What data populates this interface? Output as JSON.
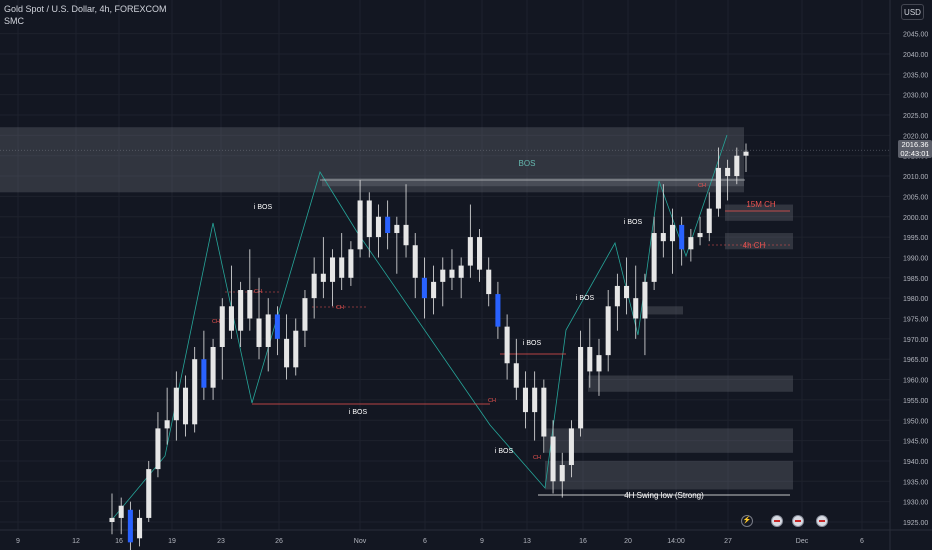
{
  "header": {
    "symbol_line": "Gold Spot / U.S. Dollar, 4h, FOREXCOM",
    "indicator": "SMC",
    "currency": "USD"
  },
  "price_tag": {
    "price": "2016.36",
    "countdown": "02:43:01"
  },
  "colors": {
    "background": "#131722",
    "grid": "#1e222d",
    "candle_up": "#e6e6e6",
    "candle_down": "#e6e6e6",
    "candle_accent": "#2962ff",
    "zone": "#787b86",
    "structure_line": "#26a69a",
    "bos_red": "#ef5350",
    "bos_label": "#ffffff",
    "choch": "#ef5350"
  },
  "chart_data": {
    "type": "candlestick",
    "y_axis": {
      "min": 1925,
      "max": 2045,
      "ticks": [
        "1925.00",
        "1930.00",
        "1935.00",
        "1940.00",
        "1945.00",
        "1950.00",
        "1955.00",
        "1960.00",
        "1965.00",
        "1970.00",
        "1975.00",
        "1980.00",
        "1985.00",
        "1990.00",
        "1995.00",
        "2000.00",
        "2005.00",
        "2010.00",
        "2015.00",
        "2020.00",
        "2025.00",
        "2030.00",
        "2035.00",
        "2040.00",
        "2045.00"
      ],
      "scale": "linear"
    },
    "x_axis": {
      "ticks": [
        "9",
        "12",
        "16",
        "19",
        "23",
        "26",
        "Nov",
        "6",
        "9",
        "13",
        "16",
        "20",
        "14:00",
        "27",
        "Dec",
        "6"
      ]
    },
    "last_price": 2016.36,
    "candles": [
      {
        "x": "16",
        "o": 1925,
        "h": 1932,
        "l": 1922,
        "c": 1926
      },
      {
        "x": "16",
        "o": 1926,
        "h": 1931,
        "l": 1922,
        "c": 1929
      },
      {
        "x": "16",
        "o": 1928,
        "h": 1930,
        "l": 1918,
        "c": 1920
      },
      {
        "x": "19",
        "o": 1921,
        "h": 1928,
        "l": 1919,
        "c": 1926
      },
      {
        "x": "19",
        "o": 1926,
        "h": 1940,
        "l": 1925,
        "c": 1938
      },
      {
        "x": "19",
        "o": 1938,
        "h": 1952,
        "l": 1936,
        "c": 1948
      },
      {
        "x": "19",
        "o": 1948,
        "h": 1958,
        "l": 1944,
        "c": 1950
      },
      {
        "x": "19",
        "o": 1950,
        "h": 1962,
        "l": 1945,
        "c": 1958
      },
      {
        "x": "19",
        "o": 1958,
        "h": 1961,
        "l": 1946,
        "c": 1949
      },
      {
        "x": "19",
        "o": 1949,
        "h": 1968,
        "l": 1947,
        "c": 1965
      },
      {
        "x": "19",
        "o": 1965,
        "h": 1972,
        "l": 1955,
        "c": 1958
      },
      {
        "x": "19",
        "o": 1958,
        "h": 1970,
        "l": 1955,
        "c": 1968
      },
      {
        "x": "23",
        "o": 1968,
        "h": 1980,
        "l": 1960,
        "c": 1978
      },
      {
        "x": "23",
        "o": 1978,
        "h": 1988,
        "l": 1970,
        "c": 1972
      },
      {
        "x": "23",
        "o": 1972,
        "h": 1984,
        "l": 1968,
        "c": 1982
      },
      {
        "x": "23",
        "o": 1982,
        "h": 1992,
        "l": 1972,
        "c": 1975
      },
      {
        "x": "23",
        "o": 1975,
        "h": 1985,
        "l": 1965,
        "c": 1968
      },
      {
        "x": "23",
        "o": 1968,
        "h": 1980,
        "l": 1962,
        "c": 1976
      },
      {
        "x": "23",
        "o": 1976,
        "h": 1978,
        "l": 1966,
        "c": 1970
      },
      {
        "x": "23",
        "o": 1970,
        "h": 1976,
        "l": 1960,
        "c": 1963
      },
      {
        "x": "26",
        "o": 1963,
        "h": 1975,
        "l": 1961,
        "c": 1972
      },
      {
        "x": "26",
        "o": 1972,
        "h": 1982,
        "l": 1968,
        "c": 1980
      },
      {
        "x": "26",
        "o": 1980,
        "h": 1990,
        "l": 1975,
        "c": 1986
      },
      {
        "x": "26",
        "o": 1986,
        "h": 1995,
        "l": 1980,
        "c": 1984
      },
      {
        "x": "26",
        "o": 1984,
        "h": 1992,
        "l": 1978,
        "c": 1990
      },
      {
        "x": "26",
        "o": 1990,
        "h": 1996,
        "l": 1982,
        "c": 1985
      },
      {
        "x": "26",
        "o": 1985,
        "h": 1994,
        "l": 1983,
        "c": 1992
      },
      {
        "x": "26",
        "o": 1992,
        "h": 2009,
        "l": 1990,
        "c": 2004
      },
      {
        "x": "Nov",
        "o": 2004,
        "h": 2006,
        "l": 1990,
        "c": 1995
      },
      {
        "x": "Nov",
        "o": 1995,
        "h": 2003,
        "l": 1990,
        "c": 2000
      },
      {
        "x": "Nov",
        "o": 2000,
        "h": 2004,
        "l": 1992,
        "c": 1996
      },
      {
        "x": "Nov",
        "o": 1996,
        "h": 2000,
        "l": 1986,
        "c": 1998
      },
      {
        "x": "Nov",
        "o": 1998,
        "h": 2008,
        "l": 1990,
        "c": 1993
      },
      {
        "x": "Nov",
        "o": 1993,
        "h": 1996,
        "l": 1980,
        "c": 1985
      },
      {
        "x": "Nov",
        "o": 1985,
        "h": 1990,
        "l": 1975,
        "c": 1980
      },
      {
        "x": "Nov",
        "o": 1980,
        "h": 1988,
        "l": 1976,
        "c": 1984
      },
      {
        "x": "6",
        "o": 1984,
        "h": 1990,
        "l": 1978,
        "c": 1987
      },
      {
        "x": "6",
        "o": 1987,
        "h": 1992,
        "l": 1982,
        "c": 1985
      },
      {
        "x": "6",
        "o": 1985,
        "h": 1990,
        "l": 1980,
        "c": 1988
      },
      {
        "x": "6",
        "o": 1988,
        "h": 2003,
        "l": 1985,
        "c": 1995
      },
      {
        "x": "6",
        "o": 1995,
        "h": 1997,
        "l": 1984,
        "c": 1987
      },
      {
        "x": "6",
        "o": 1987,
        "h": 1990,
        "l": 1978,
        "c": 1981
      },
      {
        "x": "9",
        "o": 1981,
        "h": 1984,
        "l": 1970,
        "c": 1973
      },
      {
        "x": "9",
        "o": 1973,
        "h": 1976,
        "l": 1960,
        "c": 1964
      },
      {
        "x": "9",
        "o": 1964,
        "h": 1970,
        "l": 1955,
        "c": 1958
      },
      {
        "x": "9",
        "o": 1958,
        "h": 1962,
        "l": 1948,
        "c": 1952
      },
      {
        "x": "13",
        "o": 1952,
        "h": 1962,
        "l": 1945,
        "c": 1958
      },
      {
        "x": "13",
        "o": 1958,
        "h": 1960,
        "l": 1942,
        "c": 1946
      },
      {
        "x": "13",
        "o": 1946,
        "h": 1950,
        "l": 1932,
        "c": 1935
      },
      {
        "x": "13",
        "o": 1935,
        "h": 1942,
        "l": 1931,
        "c": 1939
      },
      {
        "x": "13",
        "o": 1939,
        "h": 1950,
        "l": 1936,
        "c": 1948
      },
      {
        "x": "16",
        "o": 1948,
        "h": 1972,
        "l": 1946,
        "c": 1968
      },
      {
        "x": "16",
        "o": 1968,
        "h": 1975,
        "l": 1958,
        "c": 1962
      },
      {
        "x": "16",
        "o": 1962,
        "h": 1970,
        "l": 1956,
        "c": 1966
      },
      {
        "x": "16",
        "o": 1966,
        "h": 1982,
        "l": 1962,
        "c": 1978
      },
      {
        "x": "16",
        "o": 1978,
        "h": 1986,
        "l": 1972,
        "c": 1983
      },
      {
        "x": "16",
        "o": 1983,
        "h": 1990,
        "l": 1976,
        "c": 1980
      },
      {
        "x": "20",
        "o": 1980,
        "h": 1988,
        "l": 1970,
        "c": 1975
      },
      {
        "x": "20",
        "o": 1975,
        "h": 1986,
        "l": 1966,
        "c": 1984
      },
      {
        "x": "20",
        "o": 1984,
        "h": 2000,
        "l": 1982,
        "c": 1996
      },
      {
        "x": "20",
        "o": 1996,
        "h": 2008,
        "l": 1990,
        "c": 1994
      },
      {
        "x": "20",
        "o": 1994,
        "h": 2002,
        "l": 1986,
        "c": 1998
      },
      {
        "x": "14:00",
        "o": 1998,
        "h": 2000,
        "l": 1988,
        "c": 1992
      },
      {
        "x": "14:00",
        "o": 1992,
        "h": 1997,
        "l": 1989,
        "c": 1995
      },
      {
        "x": "14:00",
        "o": 1995,
        "h": 2000,
        "l": 1993,
        "c": 1996
      },
      {
        "x": "14:00",
        "o": 1996,
        "h": 2006,
        "l": 1994,
        "c": 2002
      },
      {
        "x": "27",
        "o": 2002,
        "h": 2017,
        "l": 2000,
        "c": 2012
      },
      {
        "x": "27",
        "o": 2012,
        "h": 2014,
        "l": 2004,
        "c": 2010
      },
      {
        "x": "27",
        "o": 2010,
        "h": 2017,
        "l": 2008,
        "c": 2015
      },
      {
        "x": "27",
        "o": 2015,
        "h": 2018,
        "l": 2011,
        "c": 2016
      }
    ],
    "zones": [
      {
        "label": "BOS",
        "y_top": 2022,
        "y_bottom": 2006,
        "x_start": "left",
        "x_end": "27"
      },
      {
        "label": "",
        "y_top": 2003,
        "y_bottom": 1999,
        "x_start": "27",
        "x_end": "Dec"
      },
      {
        "label": "",
        "y_top": 1996,
        "y_bottom": 1992,
        "x_start": "27",
        "x_end": "Dec"
      },
      {
        "label": "",
        "y_top": 1978,
        "y_bottom": 1976,
        "x_start": "20",
        "x_end": "14:00"
      },
      {
        "label": "",
        "y_top": 1961,
        "y_bottom": 1957,
        "x_start": "16",
        "x_end": "Dec"
      },
      {
        "label": "",
        "y_top": 1948,
        "y_bottom": 1942,
        "x_start": "13",
        "x_end": "Dec"
      },
      {
        "label": "",
        "y_top": 1940,
        "y_bottom": 1933,
        "x_start": "13",
        "x_end": "Dec"
      }
    ],
    "annotations": [
      {
        "text": "BOS",
        "kind": "bos_zone"
      },
      {
        "text": "i BOS",
        "kind": "ibos"
      },
      {
        "text": "i BOS",
        "kind": "ibos"
      },
      {
        "text": "i BOS",
        "kind": "ibos"
      },
      {
        "text": "i BOS",
        "kind": "ibos"
      },
      {
        "text": "i BOS",
        "kind": "ibos"
      },
      {
        "text": "i BOS",
        "kind": "ibos"
      },
      {
        "text": "CH",
        "kind": "choch"
      },
      {
        "text": "CH",
        "kind": "choch"
      },
      {
        "text": "CH",
        "kind": "choch"
      },
      {
        "text": "CH",
        "kind": "choch"
      },
      {
        "text": "CH",
        "kind": "choch"
      },
      {
        "text": "CH",
        "kind": "choch"
      },
      {
        "text": "15M CH",
        "kind": "label"
      },
      {
        "text": "4h CH",
        "kind": "label"
      },
      {
        "text": "4H Swing low (Strong)",
        "kind": "label"
      }
    ]
  }
}
